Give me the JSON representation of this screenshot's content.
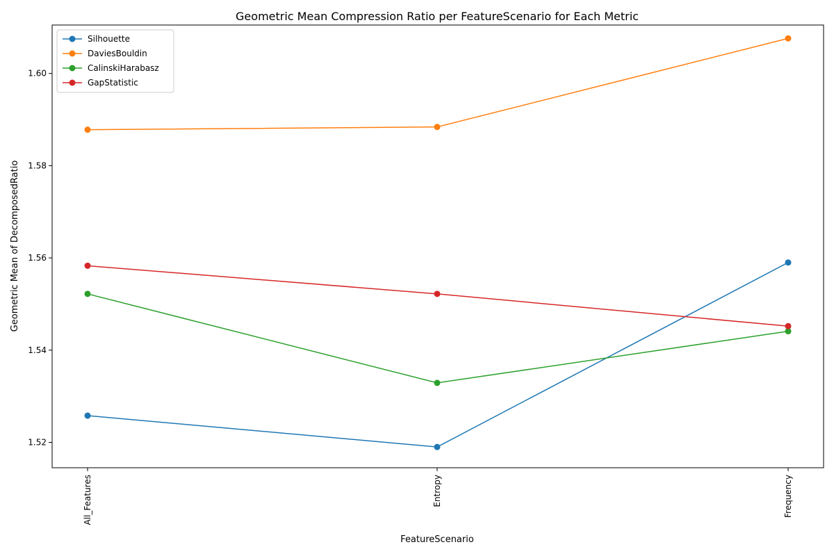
{
  "chart_data": {
    "type": "line",
    "title": "Geometric Mean Compression Ratio per FeatureScenario for Each Metric",
    "xlabel": "FeatureScenario",
    "ylabel": "Geometric Mean of DecomposedRatio",
    "categories": [
      "All_Features",
      "Entropy",
      "Frequency"
    ],
    "ylim": [
      1.5145,
      1.6105
    ],
    "yticks": [
      1.52,
      1.54,
      1.56,
      1.58,
      1.6
    ],
    "ytick_labels": [
      "1.52",
      "1.54",
      "1.56",
      "1.58",
      "1.60"
    ],
    "grid": false,
    "legend_position": "top-left",
    "series": [
      {
        "name": "Silhouette",
        "color": "#1f77b4",
        "values": [
          1.5258,
          1.519,
          1.559
        ]
      },
      {
        "name": "DaviesBouldin",
        "color": "#ff7f0e",
        "values": [
          1.5878,
          1.5884,
          1.6076
        ]
      },
      {
        "name": "CalinskiHarabasz",
        "color": "#2ca02c",
        "values": [
          1.5522,
          1.5329,
          1.5441
        ]
      },
      {
        "name": "GapStatistic",
        "color": "#d62728",
        "values": [
          1.5583,
          1.5522,
          1.5452
        ]
      }
    ]
  }
}
